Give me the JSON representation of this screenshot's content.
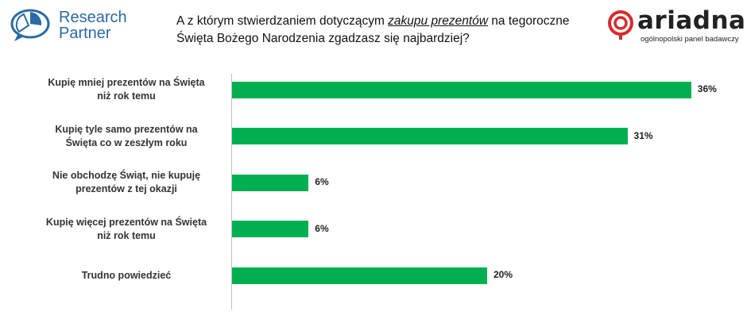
{
  "header": {
    "brand_left_line1": "Research",
    "brand_left_line2": "Partner",
    "question_prefix": "A z którym stwierdzaniem dotyczącym ",
    "question_emph": "zakupu prezentów",
    "question_suffix": " na tegoroczne Święta Bożego Narodzenia zgadzasz się najbardziej?",
    "brand_right_word": "ariadna",
    "brand_right_sub": "ogólnopolski panel badawczy",
    "brand_right_color": "#d62b2b"
  },
  "chart_data": {
    "type": "bar",
    "orientation": "horizontal",
    "categories": [
      "Kupię mniej prezentów na Święta niż rok temu",
      "Kupię tyle samo prezentów na Święta co w zeszłym roku",
      "Nie obchodzę Świąt, nie kupuję prezentów z tej okazji",
      "Kupię więcej prezentów na Święta niż rok temu",
      "Trudno powiedzieć"
    ],
    "values": [
      36,
      31,
      6,
      6,
      20
    ],
    "value_labels": [
      "36%",
      "31%",
      "6%",
      "6%",
      "20%"
    ],
    "unit": "%",
    "xlim": [
      0,
      40
    ],
    "bar_color": "#00b050",
    "grid": false
  }
}
